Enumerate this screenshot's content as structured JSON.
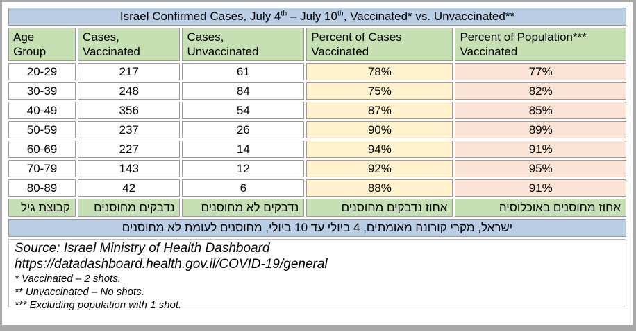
{
  "title": {
    "plain": "Israel Confirmed Cases, July 4th – July 10th, Vaccinated* vs. Unvaccinated**",
    "segments": [
      {
        "text": "Israel Confirmed Cases, July 4"
      },
      {
        "text": "th",
        "sup": true
      },
      {
        "text": " – July 10"
      },
      {
        "text": "th",
        "sup": true
      },
      {
        "text": ", Vaccinated* vs. Unvaccinated**"
      }
    ]
  },
  "columns": [
    {
      "id": "age-group",
      "label": "Age\nGroup"
    },
    {
      "id": "cases-vaccinated",
      "label": "Cases,\nVaccinated"
    },
    {
      "id": "cases-unvaccinated",
      "label": "Cases,\nUnvaccinated"
    },
    {
      "id": "percent-cases-vaccinated",
      "label": "Percent of Cases\nVaccinated"
    },
    {
      "id": "percent-population-vaccinated",
      "label": "Percent of Population***\nVaccinated"
    }
  ],
  "rows": [
    [
      "20-29",
      "217",
      "61",
      "78%",
      "77%"
    ],
    [
      "30-39",
      "248",
      "84",
      "75%",
      "82%"
    ],
    [
      "40-49",
      "356",
      "54",
      "87%",
      "85%"
    ],
    [
      "50-59",
      "237",
      "26",
      "90%",
      "89%"
    ],
    [
      "60-69",
      "227",
      "14",
      "94%",
      "91%"
    ],
    [
      "70-79",
      "143",
      "12",
      "92%",
      "95%"
    ],
    [
      "80-89",
      "42",
      "6",
      "88%",
      "91%"
    ]
  ],
  "hebrew_footer_headers": [
    "קבוצת גיל",
    "נדבקים מחוסנים",
    "נדבקים לא מחוסנים",
    "אחוז נדבקים מחוסנים",
    "אחוז מחוסנים באוכלוסיה"
  ],
  "hebrew_title": "ישראל, מקרי קורונה מאומתים, 4 ביולי עד 10 ביולי, מחוסנים לעומת לא מחוסנים",
  "source": {
    "line1": "Source: Israel Ministry of Health Dashboard",
    "line2": "https://datadashboard.health.gov.il/COVID-19/general",
    "footnotes": [
      "* Vaccinated – 2 shots.",
      "** Unvaccinated – No shots.",
      "*** Excluding population with 1 shot."
    ]
  },
  "colors": {
    "title_bg": "#b9cde5",
    "header_bg": "#c6e0b4",
    "percent_cases_bg": "#fff2cc",
    "percent_population_bg": "#fbe3d5",
    "cell_border": "#9b9b9b",
    "frame_border": "#a9a9a9"
  },
  "chart_data": {
    "type": "table",
    "title": "Israel Confirmed Cases, July 4th – July 10th, Vaccinated* vs. Unvaccinated**",
    "columns": [
      "Age Group",
      "Cases, Vaccinated",
      "Cases, Unvaccinated",
      "Percent of Cases Vaccinated",
      "Percent of Population*** Vaccinated"
    ],
    "rows": [
      [
        "20-29",
        217,
        61,
        "78%",
        "77%"
      ],
      [
        "30-39",
        248,
        84,
        "75%",
        "82%"
      ],
      [
        "40-49",
        356,
        54,
        "87%",
        "85%"
      ],
      [
        "50-59",
        237,
        26,
        "90%",
        "89%"
      ],
      [
        "60-69",
        227,
        14,
        "94%",
        "91%"
      ],
      [
        "70-79",
        143,
        12,
        "92%",
        "95%"
      ],
      [
        "80-89",
        42,
        6,
        "88%",
        "91%"
      ]
    ],
    "hebrew_column_headers": [
      "קבוצת גיל",
      "נדבקים מחוסנים",
      "נדבקים לא מחוסנים",
      "אחוז נדבקים מחוסנים",
      "אחוז מחוסנים באוכלוסיה"
    ],
    "hebrew_title": "ישראל, מקרי קורונה מאומתים, 4 ביולי עד 10 ביולי, מחוסנים לעומת לא מחוסנים",
    "source": "Source: Israel Ministry of Health Dashboard — https://datadashboard.health.gov.il/COVID-19/general",
    "notes": [
      "* Vaccinated – 2 shots.",
      "** Unvaccinated – No shots.",
      "*** Excluding population with 1 shot."
    ]
  }
}
